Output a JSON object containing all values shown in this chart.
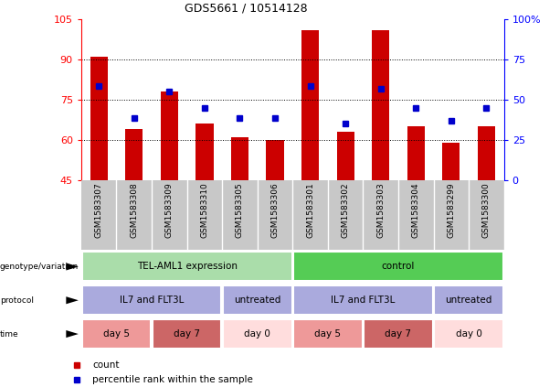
{
  "title": "GDS5661 / 10514128",
  "samples": [
    "GSM1583307",
    "GSM1583308",
    "GSM1583309",
    "GSM1583310",
    "GSM1583305",
    "GSM1583306",
    "GSM1583301",
    "GSM1583302",
    "GSM1583303",
    "GSM1583304",
    "GSM1583299",
    "GSM1583300"
  ],
  "bar_heights": [
    91,
    64,
    78,
    66,
    61,
    60,
    101,
    63,
    101,
    65,
    59,
    65
  ],
  "blue_dot_y_left": [
    80,
    68,
    78,
    72,
    68,
    68,
    80,
    66,
    79,
    72,
    67,
    72
  ],
  "ylim_left": [
    45,
    105
  ],
  "yticks_left": [
    45,
    60,
    75,
    90,
    105
  ],
  "ylim_right": [
    0,
    100
  ],
  "yticks_right": [
    0,
    25,
    50,
    75,
    100
  ],
  "bar_color": "#cc0000",
  "dot_color": "#0000cc",
  "bar_bottom": 45,
  "geno_data": [
    [
      0,
      5,
      "TEL-AML1 expression",
      "#aaddaa"
    ],
    [
      6,
      11,
      "control",
      "#55cc55"
    ]
  ],
  "prot_data": [
    [
      0,
      3,
      "IL7 and FLT3L",
      "#aaaadd"
    ],
    [
      4,
      5,
      "untreated",
      "#aaaadd"
    ],
    [
      6,
      9,
      "IL7 and FLT3L",
      "#aaaadd"
    ],
    [
      10,
      11,
      "untreated",
      "#aaaadd"
    ]
  ],
  "time_data": [
    [
      0,
      1,
      "day 5",
      "#ee9999"
    ],
    [
      2,
      3,
      "day 7",
      "#cc6666"
    ],
    [
      4,
      5,
      "day 0",
      "#ffdddd"
    ],
    [
      6,
      7,
      "day 5",
      "#ee9999"
    ],
    [
      8,
      9,
      "day 7",
      "#cc6666"
    ],
    [
      10,
      11,
      "day 0",
      "#ffdddd"
    ]
  ],
  "row_labels": [
    "genotype/variation",
    "protocol",
    "time"
  ],
  "legend_items": [
    "count",
    "percentile rank within the sample"
  ],
  "legend_colors": [
    "#cc0000",
    "#0000cc"
  ]
}
